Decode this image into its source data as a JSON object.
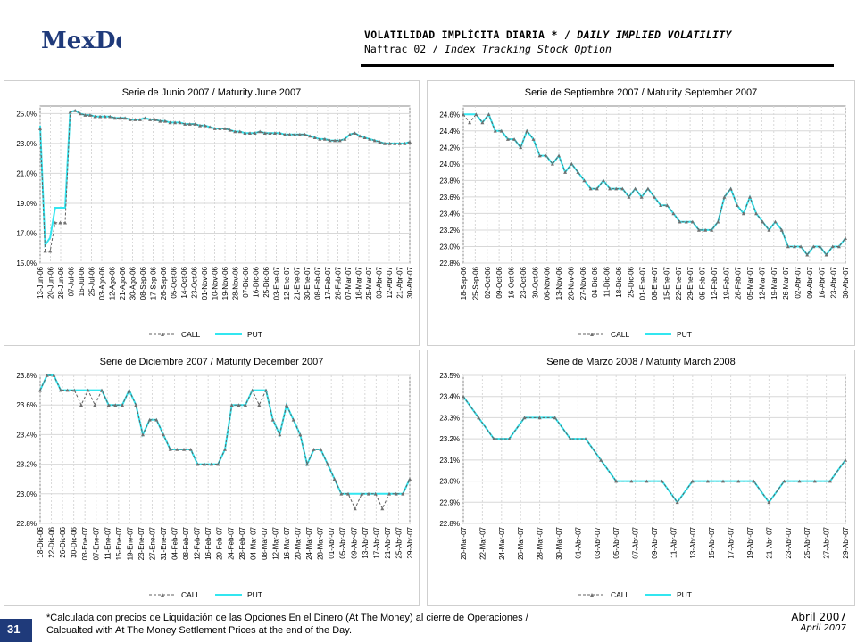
{
  "brand": {
    "logo_text": "MexDer"
  },
  "header": {
    "title_es": "VOLATILIDAD IMPLÍCITA DIARIA *",
    "title_sep": " / ",
    "title_en": "DAILY IMPLIED VOLATILITY",
    "subtitle_es": "Naftrac 02",
    "subtitle_sep": " / ",
    "subtitle_en": "Index Tracking Stock Option"
  },
  "footnote": {
    "line1": "*Calculada con precios de Liquidación de las Opciones En el Dinero (At The Money) al cierre de Operaciones /",
    "line2": "Calcualted with At The Money Settlement Prices at the end of the Day."
  },
  "date": {
    "es": "Abril 2007",
    "en": "April 2007"
  },
  "page_number": "31",
  "colors": {
    "call": "#606060",
    "put": "#33e6f0",
    "marker": "#707070",
    "grid": "#d8d8d8",
    "brand": "#1f3a7a"
  },
  "chart_data": [
    {
      "type": "line",
      "title": "Serie de Junio 2007 / Maturity June 2007",
      "ylim": [
        15.0,
        25.5
      ],
      "yticks": [
        15.0,
        17.0,
        19.0,
        21.0,
        23.0,
        25.0
      ],
      "ytick_labels": [
        "15.0%",
        "17.0%",
        "19.0%",
        "21.0%",
        "23.0%",
        "25.0%"
      ],
      "x_labels": [
        "13-Jun-06",
        "20-Jun-06",
        "28-Jun-06",
        "07-Jul-06",
        "16-Jul-06",
        "25-Jul-06",
        "03-Ago-06",
        "12-Ago-06",
        "21-Ago-06",
        "30-Ago-06",
        "08-Sep-06",
        "17-Sep-06",
        "26-Sep-06",
        "05-Oct-06",
        "14-Oct-06",
        "23-Oct-06",
        "01-Nov-06",
        "10-Nov-06",
        "19-Nov-06",
        "28-Nov-06",
        "07-Dic-06",
        "16-Dic-06",
        "25-Dic-06",
        "03-Ene-07",
        "12-Ene-07",
        "21-Ene-07",
        "30-Ene-07",
        "08-Feb-07",
        "17-Feb-07",
        "26-Feb-07",
        "07-Mar-07",
        "16-Mar-07",
        "25-Mar-07",
        "03-Abr-07",
        "12-Abr-07",
        "21-Abr-07",
        "30-Abr-07"
      ],
      "legend": [
        "CALL",
        "PUT"
      ],
      "series": [
        {
          "name": "CALL",
          "values": [
            24.0,
            15.8,
            15.8,
            17.7,
            17.7,
            17.7,
            25.1,
            25.2,
            25.0,
            24.9,
            24.9,
            24.8,
            24.8,
            24.8,
            24.8,
            24.7,
            24.7,
            24.7,
            24.6,
            24.6,
            24.6,
            24.7,
            24.6,
            24.6,
            24.5,
            24.5,
            24.4,
            24.4,
            24.4,
            24.3,
            24.3,
            24.3,
            24.2,
            24.2,
            24.1,
            24.0,
            24.0,
            24.0,
            23.9,
            23.8,
            23.8,
            23.7,
            23.7,
            23.7,
            23.8,
            23.7,
            23.7,
            23.7,
            23.7,
            23.6,
            23.6,
            23.6,
            23.6,
            23.6,
            23.5,
            23.4,
            23.3,
            23.3,
            23.2,
            23.2,
            23.2,
            23.3,
            23.6,
            23.7,
            23.5,
            23.4,
            23.3,
            23.2,
            23.1,
            23.0,
            23.0,
            23.0,
            23.0,
            23.0,
            23.1
          ]
        },
        {
          "name": "PUT",
          "values": [
            24.2,
            16.2,
            16.7,
            18.7,
            18.7,
            18.7,
            25.1,
            25.2,
            25.0,
            24.9,
            24.9,
            24.8,
            24.8,
            24.8,
            24.8,
            24.7,
            24.7,
            24.7,
            24.6,
            24.6,
            24.6,
            24.7,
            24.6,
            24.6,
            24.5,
            24.5,
            24.4,
            24.4,
            24.4,
            24.3,
            24.3,
            24.3,
            24.2,
            24.2,
            24.1,
            24.0,
            24.0,
            24.0,
            23.9,
            23.8,
            23.8,
            23.7,
            23.7,
            23.7,
            23.8,
            23.7,
            23.7,
            23.7,
            23.7,
            23.6,
            23.6,
            23.6,
            23.6,
            23.6,
            23.5,
            23.4,
            23.3,
            23.3,
            23.2,
            23.2,
            23.2,
            23.3,
            23.6,
            23.7,
            23.5,
            23.4,
            23.3,
            23.2,
            23.1,
            23.0,
            23.0,
            23.0,
            23.0,
            23.0,
            23.1
          ]
        }
      ]
    },
    {
      "type": "line",
      "title": "Serie de Septiembre 2007 / Maturity September 2007",
      "ylim": [
        22.8,
        24.7
      ],
      "yticks": [
        22.8,
        23.0,
        23.2,
        23.4,
        23.6,
        23.8,
        24.0,
        24.2,
        24.4,
        24.6
      ],
      "ytick_labels": [
        "22.8%",
        "23.0%",
        "23.2%",
        "23.4%",
        "23.6%",
        "23.8%",
        "24.0%",
        "24.2%",
        "24.4%",
        "24.6%"
      ],
      "x_labels": [
        "18-Sep-06",
        "25-Sep-06",
        "02-Oct-06",
        "09-Oct-06",
        "16-Oct-06",
        "23-Oct-06",
        "30-Oct-06",
        "06-Nov-06",
        "13-Nov-06",
        "20-Nov-06",
        "27-Nov-06",
        "04-Dic-06",
        "11-Dic-06",
        "18-Dic-06",
        "25-Dic-06",
        "01-Ene-07",
        "08-Ene-07",
        "15-Ene-07",
        "22-Ene-07",
        "29-Ene-07",
        "05-Feb-07",
        "12-Feb-07",
        "19-Feb-07",
        "26-Feb-07",
        "05-Mar-07",
        "12-Mar-07",
        "19-Mar-07",
        "26-Mar-07",
        "02-Abr-07",
        "09-Abr-07",
        "16-Abr-07",
        "23-Abr-07",
        "30-Abr-07"
      ],
      "legend": [
        "CALL",
        "PUT"
      ],
      "series": [
        {
          "name": "CALL",
          "values": [
            24.6,
            24.5,
            24.6,
            24.5,
            24.6,
            24.4,
            24.4,
            24.3,
            24.3,
            24.2,
            24.4,
            24.3,
            24.1,
            24.1,
            24.0,
            24.1,
            23.9,
            24.0,
            23.9,
            23.8,
            23.7,
            23.7,
            23.8,
            23.7,
            23.7,
            23.7,
            23.6,
            23.7,
            23.6,
            23.7,
            23.6,
            23.5,
            23.5,
            23.4,
            23.3,
            23.3,
            23.3,
            23.2,
            23.2,
            23.2,
            23.3,
            23.6,
            23.7,
            23.5,
            23.4,
            23.6,
            23.4,
            23.3,
            23.2,
            23.3,
            23.2,
            23.0,
            23.0,
            23.0,
            22.9,
            23.0,
            23.0,
            22.9,
            23.0,
            23.0,
            23.1
          ]
        },
        {
          "name": "PUT",
          "values": [
            24.6,
            24.6,
            24.6,
            24.5,
            24.6,
            24.4,
            24.4,
            24.3,
            24.3,
            24.2,
            24.4,
            24.3,
            24.1,
            24.1,
            24.0,
            24.1,
            23.9,
            24.0,
            23.9,
            23.8,
            23.7,
            23.7,
            23.8,
            23.7,
            23.7,
            23.7,
            23.6,
            23.7,
            23.6,
            23.7,
            23.6,
            23.5,
            23.5,
            23.4,
            23.3,
            23.3,
            23.3,
            23.2,
            23.2,
            23.2,
            23.3,
            23.6,
            23.7,
            23.5,
            23.4,
            23.6,
            23.4,
            23.3,
            23.2,
            23.3,
            23.2,
            23.0,
            23.0,
            23.0,
            22.9,
            23.0,
            23.0,
            22.9,
            23.0,
            23.0,
            23.1
          ]
        }
      ]
    },
    {
      "type": "line",
      "title": "Serie de Diciembre 2007 / Maturity December 2007",
      "ylim": [
        22.8,
        23.8
      ],
      "yticks": [
        22.8,
        23.0,
        23.2,
        23.4,
        23.6,
        23.8
      ],
      "ytick_labels": [
        "22.8%",
        "23.0%",
        "23.2%",
        "23.4%",
        "23.6%",
        "23.8%"
      ],
      "x_labels": [
        "18-Dic-06",
        "22-Dic-06",
        "26-Dic-06",
        "30-Dic-06",
        "03-Ene-07",
        "07-Ene-07",
        "11-Ene-07",
        "15-Ene-07",
        "19-Ene-07",
        "23-Ene-07",
        "27-Ene-07",
        "31-Ene-07",
        "04-Feb-07",
        "08-Feb-07",
        "12-Feb-07",
        "16-Feb-07",
        "20-Feb-07",
        "24-Feb-07",
        "28-Feb-07",
        "04-Mar-07",
        "08-Mar-07",
        "12-Mar-07",
        "16-Mar-07",
        "20-Mar-07",
        "24-Mar-07",
        "28-Mar-07",
        "01-Abr-07",
        "05-Abr-07",
        "09-Abr-07",
        "13-Abr-07",
        "17-Abr-07",
        "21-Abr-07",
        "25-Abr-07",
        "29-Abr-07"
      ],
      "legend": [
        "CALL",
        "PUT"
      ],
      "series": [
        {
          "name": "CALL",
          "values": [
            23.7,
            23.8,
            23.8,
            23.7,
            23.7,
            23.7,
            23.6,
            23.7,
            23.6,
            23.7,
            23.6,
            23.6,
            23.6,
            23.7,
            23.6,
            23.4,
            23.5,
            23.5,
            23.4,
            23.3,
            23.3,
            23.3,
            23.3,
            23.2,
            23.2,
            23.2,
            23.2,
            23.3,
            23.6,
            23.6,
            23.6,
            23.7,
            23.6,
            23.7,
            23.5,
            23.4,
            23.6,
            23.5,
            23.4,
            23.2,
            23.3,
            23.3,
            23.2,
            23.1,
            23.0,
            23.0,
            22.9,
            23.0,
            23.0,
            23.0,
            22.9,
            23.0,
            23.0,
            23.0,
            23.1
          ]
        },
        {
          "name": "PUT",
          "values": [
            23.7,
            23.8,
            23.8,
            23.7,
            23.7,
            23.7,
            23.7,
            23.7,
            23.7,
            23.7,
            23.6,
            23.6,
            23.6,
            23.7,
            23.6,
            23.4,
            23.5,
            23.5,
            23.4,
            23.3,
            23.3,
            23.3,
            23.3,
            23.2,
            23.2,
            23.2,
            23.2,
            23.3,
            23.6,
            23.6,
            23.6,
            23.7,
            23.7,
            23.7,
            23.5,
            23.4,
            23.6,
            23.5,
            23.4,
            23.2,
            23.3,
            23.3,
            23.2,
            23.1,
            23.0,
            23.0,
            23.0,
            23.0,
            23.0,
            23.0,
            23.0,
            23.0,
            23.0,
            23.0,
            23.1
          ]
        }
      ]
    },
    {
      "type": "line",
      "title": "Serie de Marzo 2008 / Maturity March 2008",
      "ylim": [
        22.8,
        23.5
      ],
      "yticks": [
        22.8,
        22.9,
        23.0,
        23.1,
        23.2,
        23.3,
        23.4,
        23.5
      ],
      "ytick_labels": [
        "22.8%",
        "22.9%",
        "23.0%",
        "23.1%",
        "23.2%",
        "23.3%",
        "23.4%",
        "23.5%"
      ],
      "x_labels": [
        "20-Mar-07",
        "22-Mar-07",
        "24-Mar-07",
        "26-Mar-07",
        "28-Mar-07",
        "30-Mar-07",
        "01-Abr-07",
        "03-Abr-07",
        "05-Abr-07",
        "07-Abr-07",
        "09-Abr-07",
        "11-Abr-07",
        "13-Abr-07",
        "15-Abr-07",
        "17-Abr-07",
        "19-Abr-07",
        "21-Abr-07",
        "23-Abr-07",
        "25-Abr-07",
        "27-Abr-07",
        "29-Abr-07"
      ],
      "legend": [
        "CALL",
        "PUT"
      ],
      "series": [
        {
          "name": "CALL",
          "values": [
            23.4,
            23.3,
            23.2,
            23.2,
            23.3,
            23.3,
            23.3,
            23.2,
            23.2,
            23.1,
            23.0,
            23.0,
            23.0,
            23.0,
            22.9,
            23.0,
            23.0,
            23.0,
            23.0,
            23.0,
            22.9,
            23.0,
            23.0,
            23.0,
            23.0,
            23.1
          ]
        },
        {
          "name": "PUT",
          "values": [
            23.4,
            23.3,
            23.2,
            23.2,
            23.3,
            23.3,
            23.3,
            23.2,
            23.2,
            23.1,
            23.0,
            23.0,
            23.0,
            23.0,
            22.9,
            23.0,
            23.0,
            23.0,
            23.0,
            23.0,
            22.9,
            23.0,
            23.0,
            23.0,
            23.0,
            23.1
          ]
        }
      ]
    }
  ]
}
